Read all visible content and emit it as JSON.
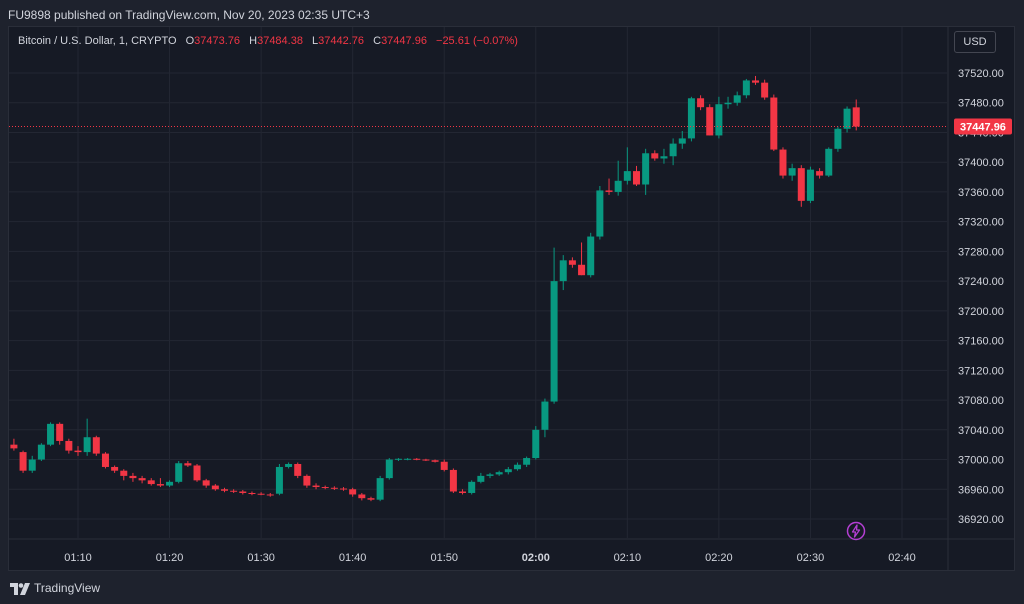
{
  "header": {
    "published": "FU9898 published on TradingView.com, Nov 20, 2023 02:35 UTC+3"
  },
  "legend": {
    "symbol": "Bitcoin / U.S. Dollar, 1, CRYPTO",
    "o_label": "O",
    "o": "37473.76",
    "h_label": "H",
    "h": "37484.38",
    "l_label": "L",
    "l": "37442.76",
    "c_label": "C",
    "c": "37447.96",
    "change": "−25.61 (−0.07%)"
  },
  "currency_button": "USD",
  "footer": {
    "brand": "TradingView"
  },
  "colors": {
    "up": "#089981",
    "down": "#f23645",
    "background": "#161a25",
    "grid": "#232733",
    "text": "#d1d4dc"
  },
  "icons": {
    "lightning": "lightning-icon",
    "logo": "tradingview-logo-icon"
  },
  "chart_data": {
    "type": "candlestick",
    "title": "Bitcoin / U.S. Dollar, 1, CRYPTO",
    "ylim": [
      36890,
      37550
    ],
    "y_ticks": [
      37520,
      37480,
      37440,
      37400,
      37360,
      37320,
      37280,
      37240,
      37200,
      37160,
      37120,
      37080,
      37040,
      37000,
      36960,
      36920
    ],
    "y_tick_labels": [
      "37520.00",
      "37480.00",
      "37440.00",
      "37400.00",
      "37360.00",
      "37320.00",
      "37280.00",
      "37240.00",
      "37200.00",
      "37160.00",
      "37120.00",
      "37080.00",
      "37040.00",
      "37000.00",
      "36960.00",
      "36920.00"
    ],
    "x_ticks": [
      "01:10",
      "01:20",
      "01:30",
      "01:40",
      "01:50",
      "02:00",
      "02:10",
      "02:20",
      "02:30",
      "02:40"
    ],
    "x_ticks_bold": [
      false,
      false,
      false,
      false,
      false,
      true,
      false,
      false,
      false,
      false
    ],
    "last_price": 37447.96,
    "last_price_label": "37447.96",
    "candles": [
      {
        "t": "01:03",
        "o": 37020,
        "h": 37028,
        "l": 37012,
        "c": 37015
      },
      {
        "t": "01:04",
        "o": 37010,
        "h": 37012,
        "l": 36982,
        "c": 36985
      },
      {
        "t": "01:05",
        "o": 36985,
        "h": 37005,
        "l": 36982,
        "c": 37000
      },
      {
        "t": "01:06",
        "o": 37000,
        "h": 37022,
        "l": 36998,
        "c": 37020
      },
      {
        "t": "01:07",
        "o": 37020,
        "h": 37050,
        "l": 37018,
        "c": 37048
      },
      {
        "t": "01:08",
        "o": 37048,
        "h": 37050,
        "l": 37020,
        "c": 37025
      },
      {
        "t": "01:09",
        "o": 37025,
        "h": 37028,
        "l": 37008,
        "c": 37012
      },
      {
        "t": "01:10",
        "o": 37012,
        "h": 37018,
        "l": 37005,
        "c": 37010
      },
      {
        "t": "01:11",
        "o": 37010,
        "h": 37055,
        "l": 37005,
        "c": 37030
      },
      {
        "t": "01:12",
        "o": 37030,
        "h": 37032,
        "l": 37005,
        "c": 37008
      },
      {
        "t": "01:13",
        "o": 37008,
        "h": 37010,
        "l": 36988,
        "c": 36990
      },
      {
        "t": "01:14",
        "o": 36990,
        "h": 36992,
        "l": 36982,
        "c": 36985
      },
      {
        "t": "01:15",
        "o": 36985,
        "h": 36987,
        "l": 36972,
        "c": 36978
      },
      {
        "t": "01:16",
        "o": 36978,
        "h": 36982,
        "l": 36970,
        "c": 36975
      },
      {
        "t": "01:17",
        "o": 36975,
        "h": 36978,
        "l": 36968,
        "c": 36972
      },
      {
        "t": "01:18",
        "o": 36972,
        "h": 36975,
        "l": 36965,
        "c": 36967
      },
      {
        "t": "01:19",
        "o": 36967,
        "h": 36975,
        "l": 36963,
        "c": 36965
      },
      {
        "t": "01:20",
        "o": 36965,
        "h": 36972,
        "l": 36963,
        "c": 36970
      },
      {
        "t": "01:21",
        "o": 36970,
        "h": 36998,
        "l": 36968,
        "c": 36995
      },
      {
        "t": "01:22",
        "o": 36995,
        "h": 36998,
        "l": 36990,
        "c": 36992
      },
      {
        "t": "01:23",
        "o": 36992,
        "h": 36994,
        "l": 36970,
        "c": 36972
      },
      {
        "t": "01:24",
        "o": 36972,
        "h": 36974,
        "l": 36962,
        "c": 36965
      },
      {
        "t": "01:25",
        "o": 36965,
        "h": 36967,
        "l": 36958,
        "c": 36960
      },
      {
        "t": "01:26",
        "o": 36960,
        "h": 36962,
        "l": 36956,
        "c": 36958
      },
      {
        "t": "01:27",
        "o": 36958,
        "h": 36960,
        "l": 36955,
        "c": 36957
      },
      {
        "t": "01:28",
        "o": 36957,
        "h": 36959,
        "l": 36953,
        "c": 36955
      },
      {
        "t": "01:29",
        "o": 36955,
        "h": 36957,
        "l": 36952,
        "c": 36954
      },
      {
        "t": "01:30",
        "o": 36954,
        "h": 36956,
        "l": 36952,
        "c": 36953
      },
      {
        "t": "01:31",
        "o": 36953,
        "h": 36955,
        "l": 36950,
        "c": 36952
      },
      {
        "t": "01:32",
        "o": 36954,
        "h": 36994,
        "l": 36952,
        "c": 36990
      },
      {
        "t": "01:33",
        "o": 36990,
        "h": 36996,
        "l": 36988,
        "c": 36994
      },
      {
        "t": "01:34",
        "o": 36994,
        "h": 36996,
        "l": 36975,
        "c": 36978
      },
      {
        "t": "01:35",
        "o": 36978,
        "h": 36980,
        "l": 36962,
        "c": 36965
      },
      {
        "t": "01:36",
        "o": 36965,
        "h": 36968,
        "l": 36960,
        "c": 36963
      },
      {
        "t": "01:37",
        "o": 36963,
        "h": 36965,
        "l": 36960,
        "c": 36962
      },
      {
        "t": "01:38",
        "o": 36962,
        "h": 36964,
        "l": 36959,
        "c": 36961
      },
      {
        "t": "01:39",
        "o": 36961,
        "h": 36963,
        "l": 36958,
        "c": 36960
      },
      {
        "t": "01:40",
        "o": 36960,
        "h": 36962,
        "l": 36950,
        "c": 36953
      },
      {
        "t": "01:41",
        "o": 36953,
        "h": 36955,
        "l": 36945,
        "c": 36948
      },
      {
        "t": "01:42",
        "o": 36948,
        "h": 36950,
        "l": 36944,
        "c": 36946
      },
      {
        "t": "01:43",
        "o": 36946,
        "h": 36978,
        "l": 36944,
        "c": 36975
      },
      {
        "t": "01:44",
        "o": 36975,
        "h": 37002,
        "l": 36973,
        "c": 37000
      },
      {
        "t": "01:45",
        "o": 37000,
        "h": 37002,
        "l": 36998,
        "c": 37001
      },
      {
        "t": "01:46",
        "o": 37001,
        "h": 37002,
        "l": 36999,
        "c": 37001
      },
      {
        "t": "01:47",
        "o": 37001,
        "h": 37002,
        "l": 36999,
        "c": 37000
      },
      {
        "t": "01:48",
        "o": 37000,
        "h": 37001,
        "l": 36998,
        "c": 36999
      },
      {
        "t": "01:49",
        "o": 36999,
        "h": 37000,
        "l": 36996,
        "c": 36997
      },
      {
        "t": "01:50",
        "o": 36997,
        "h": 37000,
        "l": 36984,
        "c": 36986
      },
      {
        "t": "01:51",
        "o": 36986,
        "h": 36988,
        "l": 36955,
        "c": 36957
      },
      {
        "t": "01:52",
        "o": 36957,
        "h": 36960,
        "l": 36953,
        "c": 36955
      },
      {
        "t": "01:53",
        "o": 36955,
        "h": 36972,
        "l": 36953,
        "c": 36970
      },
      {
        "t": "01:54",
        "o": 36970,
        "h": 36982,
        "l": 36968,
        "c": 36978
      },
      {
        "t": "01:55",
        "o": 36978,
        "h": 36982,
        "l": 36975,
        "c": 36980
      },
      {
        "t": "01:56",
        "o": 36980,
        "h": 36985,
        "l": 36978,
        "c": 36983
      },
      {
        "t": "01:57",
        "o": 36983,
        "h": 36990,
        "l": 36980,
        "c": 36987
      },
      {
        "t": "01:58",
        "o": 36987,
        "h": 36996,
        "l": 36985,
        "c": 36993
      },
      {
        "t": "01:59",
        "o": 36993,
        "h": 37004,
        "l": 36990,
        "c": 37002
      },
      {
        "t": "02:00",
        "o": 37002,
        "h": 37045,
        "l": 37000,
        "c": 37040
      },
      {
        "t": "02:01",
        "o": 37040,
        "h": 37082,
        "l": 37030,
        "c": 37078
      },
      {
        "t": "02:02",
        "o": 37078,
        "h": 37285,
        "l": 37075,
        "c": 37240
      },
      {
        "t": "02:03",
        "o": 37240,
        "h": 37275,
        "l": 37228,
        "c": 37268
      },
      {
        "t": "02:04",
        "o": 37268,
        "h": 37272,
        "l": 37258,
        "c": 37262
      },
      {
        "t": "02:05",
        "o": 37262,
        "h": 37292,
        "l": 37248,
        "c": 37248
      },
      {
        "t": "02:06",
        "o": 37248,
        "h": 37305,
        "l": 37245,
        "c": 37300
      },
      {
        "t": "02:07",
        "o": 37300,
        "h": 37368,
        "l": 37296,
        "c": 37362
      },
      {
        "t": "02:08",
        "o": 37362,
        "h": 37378,
        "l": 37356,
        "c": 37360
      },
      {
        "t": "02:09",
        "o": 37360,
        "h": 37402,
        "l": 37355,
        "c": 37375
      },
      {
        "t": "02:10",
        "o": 37375,
        "h": 37420,
        "l": 37370,
        "c": 37388
      },
      {
        "t": "02:11",
        "o": 37388,
        "h": 37395,
        "l": 37368,
        "c": 37370
      },
      {
        "t": "02:12",
        "o": 37370,
        "h": 37418,
        "l": 37356,
        "c": 37412
      },
      {
        "t": "02:13",
        "o": 37412,
        "h": 37416,
        "l": 37402,
        "c": 37405
      },
      {
        "t": "02:14",
        "o": 37405,
        "h": 37418,
        "l": 37398,
        "c": 37408
      },
      {
        "t": "02:15",
        "o": 37408,
        "h": 37432,
        "l": 37396,
        "c": 37425
      },
      {
        "t": "02:16",
        "o": 37425,
        "h": 37442,
        "l": 37418,
        "c": 37432
      },
      {
        "t": "02:17",
        "o": 37432,
        "h": 37488,
        "l": 37428,
        "c": 37486
      },
      {
        "t": "02:18",
        "o": 37486,
        "h": 37490,
        "l": 37470,
        "c": 37474
      },
      {
        "t": "02:19",
        "o": 37474,
        "h": 37478,
        "l": 37436,
        "c": 37436
      },
      {
        "t": "02:20",
        "o": 37436,
        "h": 37488,
        "l": 37432,
        "c": 37478
      },
      {
        "t": "02:21",
        "o": 37478,
        "h": 37488,
        "l": 37472,
        "c": 37480
      },
      {
        "t": "02:22",
        "o": 37480,
        "h": 37495,
        "l": 37476,
        "c": 37490
      },
      {
        "t": "02:23",
        "o": 37490,
        "h": 37512,
        "l": 37486,
        "c": 37510
      },
      {
        "t": "02:24",
        "o": 37510,
        "h": 37516,
        "l": 37504,
        "c": 37507
      },
      {
        "t": "02:25",
        "o": 37507,
        "h": 37511,
        "l": 37484,
        "c": 37487
      },
      {
        "t": "02:26",
        "o": 37487,
        "h": 37491,
        "l": 37415,
        "c": 37417
      },
      {
        "t": "02:27",
        "o": 37417,
        "h": 37420,
        "l": 37378,
        "c": 37382
      },
      {
        "t": "02:28",
        "o": 37382,
        "h": 37398,
        "l": 37375,
        "c": 37392
      },
      {
        "t": "02:29",
        "o": 37392,
        "h": 37396,
        "l": 37340,
        "c": 37348
      },
      {
        "t": "02:30",
        "o": 37348,
        "h": 37394,
        "l": 37345,
        "c": 37390
      },
      {
        "t": "02:31",
        "o": 37388,
        "h": 37392,
        "l": 37378,
        "c": 37382
      },
      {
        "t": "02:32",
        "o": 37382,
        "h": 37420,
        "l": 37380,
        "c": 37418
      },
      {
        "t": "02:33",
        "o": 37418,
        "h": 37448,
        "l": 37414,
        "c": 37445
      },
      {
        "t": "02:34",
        "o": 37445,
        "h": 37475,
        "l": 37440,
        "c": 37472
      },
      {
        "t": "02:35",
        "o": 37473.76,
        "h": 37484.38,
        "l": 37442.76,
        "c": 37447.96
      }
    ]
  }
}
